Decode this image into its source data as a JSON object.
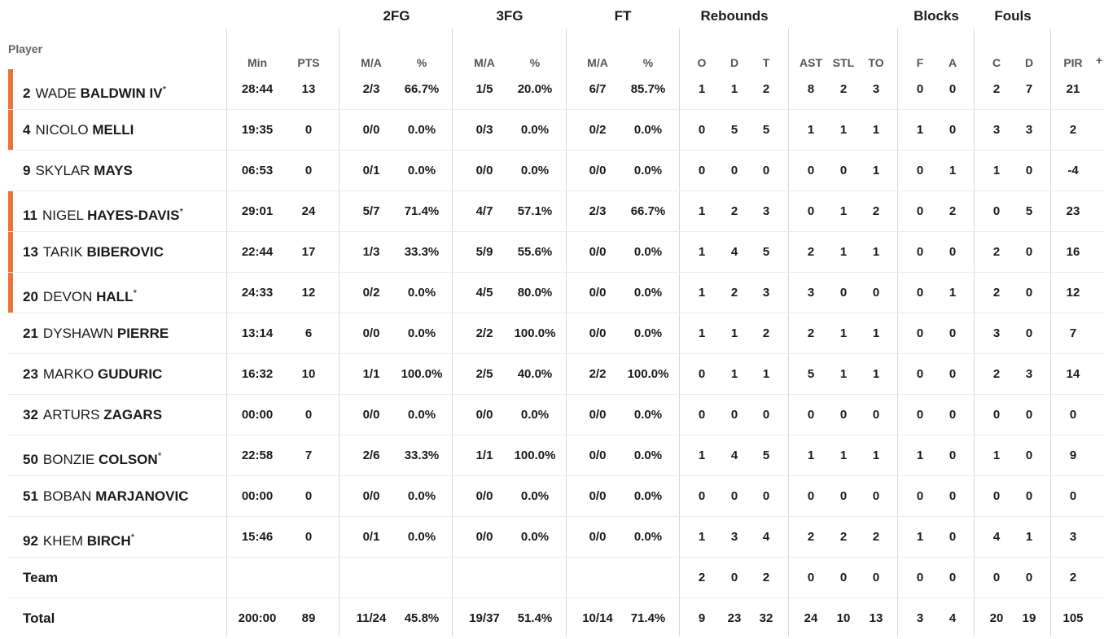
{
  "groups": [
    {
      "label": "2FG",
      "x": 487
    },
    {
      "label": "3FG",
      "x": 626
    },
    {
      "label": "FT",
      "x": 765
    },
    {
      "label": "Rebounds",
      "x": 902
    },
    {
      "label": "Blocks",
      "x": 1150
    },
    {
      "label": "Fouls",
      "x": 1244
    }
  ],
  "player_header": "Player",
  "columns": [
    "Min",
    "PTS",
    "M/A",
    "%",
    "M/A",
    "%",
    "M/A",
    "%",
    "O",
    "D",
    "T",
    "AST",
    "STL",
    "TO",
    "F",
    "A",
    "C",
    "D",
    "PIR"
  ],
  "plus": "+",
  "players": [
    {
      "num": "2",
      "first": "WADE",
      "last": "BALDWIN IV",
      "star": true,
      "starter": true,
      "stats": [
        "28:44",
        "13",
        "2/3",
        "66.7%",
        "1/5",
        "20.0%",
        "6/7",
        "85.7%",
        "1",
        "1",
        "2",
        "8",
        "2",
        "3",
        "0",
        "0",
        "2",
        "7",
        "21"
      ]
    },
    {
      "num": "4",
      "first": "NICOLO",
      "last": "MELLI",
      "star": false,
      "starter": true,
      "stats": [
        "19:35",
        "0",
        "0/0",
        "0.0%",
        "0/3",
        "0.0%",
        "0/2",
        "0.0%",
        "0",
        "5",
        "5",
        "1",
        "1",
        "1",
        "1",
        "0",
        "3",
        "3",
        "2"
      ]
    },
    {
      "num": "9",
      "first": "SKYLAR",
      "last": "MAYS",
      "star": false,
      "starter": false,
      "stats": [
        "06:53",
        "0",
        "0/1",
        "0.0%",
        "0/0",
        "0.0%",
        "0/0",
        "0.0%",
        "0",
        "0",
        "0",
        "0",
        "0",
        "1",
        "0",
        "1",
        "1",
        "0",
        "-4"
      ]
    },
    {
      "num": "11",
      "first": "NIGEL",
      "last": "HAYES-DAVIS",
      "star": true,
      "starter": true,
      "stats": [
        "29:01",
        "24",
        "5/7",
        "71.4%",
        "4/7",
        "57.1%",
        "2/3",
        "66.7%",
        "1",
        "2",
        "3",
        "0",
        "1",
        "2",
        "0",
        "2",
        "0",
        "5",
        "23"
      ]
    },
    {
      "num": "13",
      "first": "TARIK",
      "last": "BIBEROVIC",
      "star": false,
      "starter": true,
      "stats": [
        "22:44",
        "17",
        "1/3",
        "33.3%",
        "5/9",
        "55.6%",
        "0/0",
        "0.0%",
        "1",
        "4",
        "5",
        "2",
        "1",
        "1",
        "0",
        "0",
        "2",
        "0",
        "16"
      ]
    },
    {
      "num": "20",
      "first": "DEVON",
      "last": "HALL",
      "star": true,
      "starter": true,
      "stats": [
        "24:33",
        "12",
        "0/2",
        "0.0%",
        "4/5",
        "80.0%",
        "0/0",
        "0.0%",
        "1",
        "2",
        "3",
        "3",
        "0",
        "0",
        "0",
        "1",
        "2",
        "0",
        "12"
      ]
    },
    {
      "num": "21",
      "first": "DYSHAWN",
      "last": "PIERRE",
      "star": false,
      "starter": false,
      "stats": [
        "13:14",
        "6",
        "0/0",
        "0.0%",
        "2/2",
        "100.0%",
        "0/0",
        "0.0%",
        "1",
        "1",
        "2",
        "2",
        "1",
        "1",
        "0",
        "0",
        "3",
        "0",
        "7"
      ]
    },
    {
      "num": "23",
      "first": "MARKO",
      "last": "GUDURIC",
      "star": false,
      "starter": false,
      "stats": [
        "16:32",
        "10",
        "1/1",
        "100.0%",
        "2/5",
        "40.0%",
        "2/2",
        "100.0%",
        "0",
        "1",
        "1",
        "5",
        "1",
        "1",
        "0",
        "0",
        "2",
        "3",
        "14"
      ]
    },
    {
      "num": "32",
      "first": "ARTURS",
      "last": "ZAGARS",
      "star": false,
      "starter": false,
      "stats": [
        "00:00",
        "0",
        "0/0",
        "0.0%",
        "0/0",
        "0.0%",
        "0/0",
        "0.0%",
        "0",
        "0",
        "0",
        "0",
        "0",
        "0",
        "0",
        "0",
        "0",
        "0",
        "0"
      ]
    },
    {
      "num": "50",
      "first": "BONZIE",
      "last": "COLSON",
      "star": true,
      "starter": false,
      "stats": [
        "22:58",
        "7",
        "2/6",
        "33.3%",
        "1/1",
        "100.0%",
        "0/0",
        "0.0%",
        "1",
        "4",
        "5",
        "1",
        "1",
        "1",
        "1",
        "0",
        "1",
        "0",
        "9"
      ]
    },
    {
      "num": "51",
      "first": "BOBAN",
      "last": "MARJANOVIC",
      "star": false,
      "starter": false,
      "stats": [
        "00:00",
        "0",
        "0/0",
        "0.0%",
        "0/0",
        "0.0%",
        "0/0",
        "0.0%",
        "0",
        "0",
        "0",
        "0",
        "0",
        "0",
        "0",
        "0",
        "0",
        "0",
        "0"
      ]
    },
    {
      "num": "92",
      "first": "KHEM",
      "last": "BIRCH",
      "star": true,
      "starter": false,
      "stats": [
        "15:46",
        "0",
        "0/1",
        "0.0%",
        "0/0",
        "0.0%",
        "0/0",
        "0.0%",
        "1",
        "3",
        "4",
        "2",
        "2",
        "2",
        "1",
        "0",
        "4",
        "1",
        "3"
      ]
    }
  ],
  "team": {
    "label": "Team",
    "stats": [
      "",
      "",
      "",
      "",
      "",
      "",
      "",
      "",
      "2",
      "0",
      "2",
      "0",
      "0",
      "0",
      "0",
      "0",
      "0",
      "0",
      "2"
    ]
  },
  "total": {
    "label": "Total",
    "stats": [
      "200:00",
      "89",
      "11/24",
      "45.8%",
      "19/37",
      "51.4%",
      "10/14",
      "71.4%",
      "9",
      "23",
      "32",
      "24",
      "10",
      "13",
      "3",
      "4",
      "20",
      "19",
      "105"
    ]
  },
  "star_symbol": "*",
  "colors": {
    "starter_bar": "#f0703a"
  }
}
